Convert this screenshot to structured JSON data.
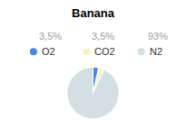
{
  "chart_data": {
    "type": "pie",
    "title": "Banana",
    "categories": [
      "O2",
      "CO2",
      "N2"
    ],
    "values": [
      3.5,
      3.5,
      93
    ],
    "value_labels": [
      "3,5%",
      "3,5%",
      "93%"
    ],
    "colors": [
      "#4a86e8",
      "#fcf2c8",
      "#d3dfe2"
    ],
    "data_labels": true
  }
}
